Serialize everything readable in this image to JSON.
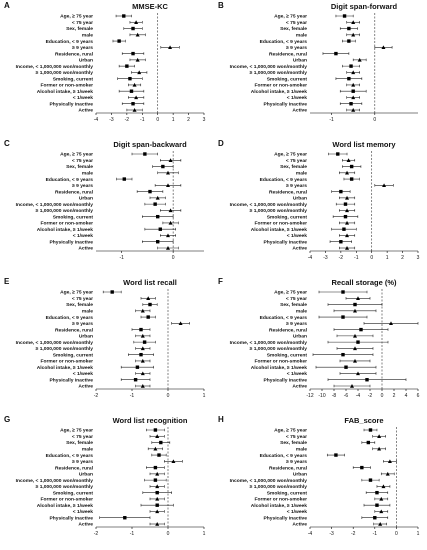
{
  "chart_data": [
    {
      "type": "forest",
      "panel_letter": "A",
      "title": "MMSE-KC",
      "xlim": [
        -4,
        3
      ],
      "xticks": [
        -4,
        -3,
        -2,
        -1,
        0,
        1,
        2,
        3
      ],
      "rows": [
        {
          "label": "Age, ≥ 75 year",
          "est": -2.2,
          "lo": -2.7,
          "hi": -1.7
        },
        {
          "label": "< 75 year",
          "est": -1.4,
          "lo": -1.8,
          "hi": -1.0
        },
        {
          "label": "Sex, female",
          "est": -1.6,
          "lo": -2.2,
          "hi": -1.0
        },
        {
          "label": "male",
          "est": -1.3,
          "lo": -1.8,
          "hi": -0.8
        },
        {
          "label": "Education, < 9 years",
          "est": -2.5,
          "lo": -2.9,
          "hi": -2.1
        },
        {
          "label": "≥ 9 years",
          "est": 0.8,
          "lo": 0.2,
          "hi": 1.4
        },
        {
          "label": "Residence, rural",
          "est": -1.6,
          "lo": -2.3,
          "hi": -0.9
        },
        {
          "label": "Urban",
          "est": -1.3,
          "lo": -1.8,
          "hi": -0.8
        },
        {
          "label": "Income, < 1,000,000 won/monthly",
          "est": -2.0,
          "lo": -2.5,
          "hi": -1.5
        },
        {
          "label": "≥ 1,000,000 won/monthly",
          "est": -1.2,
          "lo": -1.7,
          "hi": -0.7
        },
        {
          "label": "Smoking, current",
          "est": -1.8,
          "lo": -2.6,
          "hi": -1.0
        },
        {
          "label": "Former or non-smoker",
          "est": -1.5,
          "lo": -1.9,
          "hi": -1.1
        },
        {
          "label": "Alcohol intake, ≥ 1/week",
          "est": -1.7,
          "lo": -2.5,
          "hi": -0.9
        },
        {
          "label": "< 1/week",
          "est": -1.4,
          "lo": -1.9,
          "hi": -0.9
        },
        {
          "label": "Physically inactive",
          "est": -1.6,
          "lo": -2.3,
          "hi": -0.9
        },
        {
          "label": "Active",
          "est": -1.5,
          "lo": -2.0,
          "hi": -1.0
        }
      ]
    },
    {
      "type": "forest",
      "panel_letter": "B",
      "title": "Digit span-forward",
      "xlim": [
        -1.5,
        1
      ],
      "xticks": [
        -1,
        0
      ],
      "rows": [
        {
          "label": "Age, ≥ 75 year",
          "est": -0.7,
          "lo": -0.9,
          "hi": -0.5
        },
        {
          "label": "< 75 year",
          "est": -0.5,
          "lo": -0.65,
          "hi": -0.35
        },
        {
          "label": "Sex, female",
          "est": -0.6,
          "lo": -0.8,
          "hi": -0.4
        },
        {
          "label": "male",
          "est": -0.5,
          "lo": -0.65,
          "hi": -0.35
        },
        {
          "label": "Education, < 9 years",
          "est": -0.6,
          "lo": -0.75,
          "hi": -0.45
        },
        {
          "label": "≥ 9 years",
          "est": 0.2,
          "lo": 0.0,
          "hi": 0.4
        },
        {
          "label": "Residence, rural",
          "est": -0.9,
          "lo": -1.2,
          "hi": -0.6
        },
        {
          "label": "Urban",
          "est": -0.35,
          "lo": -0.5,
          "hi": -0.2
        },
        {
          "label": "Income, < 1,000,000 won/monthly",
          "est": -0.55,
          "lo": -0.75,
          "hi": -0.35
        },
        {
          "label": "≥ 1,000,000 won/monthly",
          "est": -0.5,
          "lo": -0.65,
          "hi": -0.35
        },
        {
          "label": "Smoking, current",
          "est": -0.6,
          "lo": -0.9,
          "hi": -0.3
        },
        {
          "label": "Former or non-smoker",
          "est": -0.5,
          "lo": -0.65,
          "hi": -0.35
        },
        {
          "label": "Alcohol intake, ≥ 1/week",
          "est": -0.5,
          "lo": -0.8,
          "hi": -0.2
        },
        {
          "label": "< 1/week",
          "est": -0.5,
          "lo": -0.65,
          "hi": -0.35
        },
        {
          "label": "Physically inactive",
          "est": -0.55,
          "lo": -0.8,
          "hi": -0.3
        },
        {
          "label": "Active",
          "est": -0.5,
          "lo": -0.65,
          "hi": -0.35
        }
      ]
    },
    {
      "type": "forest",
      "panel_letter": "C",
      "title": "Digit span-backward",
      "xlim": [
        -1.5,
        0.6
      ],
      "xticks": [
        -1,
        0
      ],
      "rows": [
        {
          "label": "Age, ≥ 75 year",
          "est": -0.55,
          "lo": -0.8,
          "hi": -0.3
        },
        {
          "label": "< 75 year",
          "est": -0.05,
          "lo": -0.25,
          "hi": 0.15
        },
        {
          "label": "Sex, female",
          "est": -0.2,
          "lo": -0.4,
          "hi": 0.0
        },
        {
          "label": "male",
          "est": -0.1,
          "lo": -0.3,
          "hi": 0.1
        },
        {
          "label": "Education, < 9 years",
          "est": -0.95,
          "lo": -1.1,
          "hi": -0.8
        },
        {
          "label": "≥ 9 years",
          "est": -0.1,
          "lo": -0.35,
          "hi": 0.15
        },
        {
          "label": "Residence, rural",
          "est": -0.45,
          "lo": -0.7,
          "hi": -0.2
        },
        {
          "label": "Urban",
          "est": -0.3,
          "lo": -0.45,
          "hi": -0.15
        },
        {
          "label": "Income, < 1,000,000 won/monthly",
          "est": -0.35,
          "lo": -0.55,
          "hi": -0.15
        },
        {
          "label": "≥ 1,000,000 won/monthly",
          "est": -0.05,
          "lo": -0.25,
          "hi": 0.15
        },
        {
          "label": "Smoking, current",
          "est": -0.3,
          "lo": -0.6,
          "hi": 0.0
        },
        {
          "label": "Former or non-smoker",
          "est": -0.05,
          "lo": -0.2,
          "hi": 0.1
        },
        {
          "label": "Alcohol intake, ≥ 1/week",
          "est": -0.25,
          "lo": -0.55,
          "hi": 0.05
        },
        {
          "label": "< 1/week",
          "est": -0.1,
          "lo": -0.25,
          "hi": 0.05
        },
        {
          "label": "Physically inactive",
          "est": -0.3,
          "lo": -0.6,
          "hi": 0.0
        },
        {
          "label": "Active",
          "est": -0.1,
          "lo": -0.3,
          "hi": 0.1
        }
      ]
    },
    {
      "type": "forest",
      "panel_letter": "D",
      "title": "Word list memory",
      "xlim": [
        -4,
        3
      ],
      "xticks": [
        -4,
        -3,
        -2,
        -1,
        0,
        1,
        2,
        3
      ],
      "rows": [
        {
          "label": "Age, ≥ 75 year",
          "est": -2.2,
          "lo": -2.8,
          "hi": -1.6
        },
        {
          "label": "< 75 year",
          "est": -1.5,
          "lo": -1.9,
          "hi": -1.1
        },
        {
          "label": "Sex, female",
          "est": -1.3,
          "lo": -1.9,
          "hi": -0.7
        },
        {
          "label": "male",
          "est": -1.6,
          "lo": -2.1,
          "hi": -1.1
        },
        {
          "label": "Education, < 9 years",
          "est": -1.3,
          "lo": -1.8,
          "hi": -0.8
        },
        {
          "label": "≥ 9 years",
          "est": 0.8,
          "lo": 0.2,
          "hi": 1.4
        },
        {
          "label": "Residence, rural",
          "est": -2.0,
          "lo": -2.6,
          "hi": -1.4
        },
        {
          "label": "Urban",
          "est": -1.6,
          "lo": -2.1,
          "hi": -1.1
        },
        {
          "label": "Income, < 1,000,000 won/monthly",
          "est": -1.7,
          "lo": -2.3,
          "hi": -1.1
        },
        {
          "label": "≥ 1,000,000 won/monthly",
          "est": -1.6,
          "lo": -2.1,
          "hi": -1.1
        },
        {
          "label": "Smoking, current",
          "est": -1.7,
          "lo": -2.5,
          "hi": -0.9
        },
        {
          "label": "Former or non-smoker",
          "est": -1.6,
          "lo": -2.1,
          "hi": -1.1
        },
        {
          "label": "Alcohol intake, ≥ 1/week",
          "est": -1.8,
          "lo": -2.6,
          "hi": -1.0
        },
        {
          "label": "< 1/week",
          "est": -1.6,
          "lo": -2.1,
          "hi": -1.1
        },
        {
          "label": "Physically inactive",
          "est": -2.0,
          "lo": -2.7,
          "hi": -1.3
        },
        {
          "label": "Active",
          "est": -1.6,
          "lo": -2.1,
          "hi": -1.1
        }
      ]
    },
    {
      "type": "forest",
      "panel_letter": "E",
      "title": "Word list recall",
      "xlim": [
        -2,
        1
      ],
      "xticks": [
        -2,
        -1,
        0,
        1
      ],
      "rows": [
        {
          "label": "Age, ≥ 75 year",
          "est": -1.55,
          "lo": -1.8,
          "hi": -1.3
        },
        {
          "label": "< 75 year",
          "est": -0.55,
          "lo": -0.75,
          "hi": -0.35
        },
        {
          "label": "Sex, female",
          "est": -0.5,
          "lo": -0.7,
          "hi": -0.3
        },
        {
          "label": "male",
          "est": -0.7,
          "lo": -0.9,
          "hi": -0.5
        },
        {
          "label": "Education, < 9 years",
          "est": -0.55,
          "lo": -0.75,
          "hi": -0.35
        },
        {
          "label": "≥ 9 years",
          "est": 0.35,
          "lo": 0.1,
          "hi": 0.6
        },
        {
          "label": "Residence, rural",
          "est": -0.75,
          "lo": -1.0,
          "hi": -0.5
        },
        {
          "label": "Urban",
          "est": -0.7,
          "lo": -0.9,
          "hi": -0.5
        },
        {
          "label": "Income, < 1,000,000 won/monthly",
          "est": -0.65,
          "lo": -0.95,
          "hi": -0.35
        },
        {
          "label": "≥ 1,000,000 won/monthly",
          "est": -0.7,
          "lo": -0.9,
          "hi": -0.5
        },
        {
          "label": "Smoking, current",
          "est": -0.75,
          "lo": -1.1,
          "hi": -0.4
        },
        {
          "label": "Former or non-smoker",
          "est": -0.7,
          "lo": -0.9,
          "hi": -0.5
        },
        {
          "label": "Alcohol intake, ≥ 1/week",
          "est": -0.85,
          "lo": -1.3,
          "hi": -0.4
        },
        {
          "label": "< 1/week",
          "est": -0.7,
          "lo": -0.9,
          "hi": -0.5
        },
        {
          "label": "Physically inactive",
          "est": -0.9,
          "lo": -1.3,
          "hi": -0.5
        },
        {
          "label": "Active",
          "est": -0.7,
          "lo": -0.9,
          "hi": -0.5
        }
      ]
    },
    {
      "type": "forest",
      "panel_letter": "F",
      "title": "Recall storage (%)",
      "xlim": [
        -12,
        6
      ],
      "xticks": [
        -12,
        -10,
        -8,
        -6,
        -4,
        -2,
        0,
        2,
        4,
        6
      ],
      "rows": [
        {
          "label": "Age, ≥ 75 year",
          "est": -6.5,
          "lo": -10.5,
          "hi": -2.5
        },
        {
          "label": "< 75 year",
          "est": -4.0,
          "lo": -6.0,
          "hi": -2.0
        },
        {
          "label": "Sex, female",
          "est": -4.5,
          "lo": -9.0,
          "hi": 0.0
        },
        {
          "label": "male",
          "est": -4.5,
          "lo": -8.0,
          "hi": -1.0
        },
        {
          "label": "Education, < 9 years",
          "est": -6.5,
          "lo": -10.5,
          "hi": -2.5
        },
        {
          "label": "≥ 9 years",
          "est": 1.5,
          "lo": -3.0,
          "hi": 6.0
        },
        {
          "label": "Residence, rural",
          "est": -3.5,
          "lo": -8.0,
          "hi": 1.0
        },
        {
          "label": "Urban",
          "est": -4.5,
          "lo": -7.5,
          "hi": -1.5
        },
        {
          "label": "Income, < 1,000,000 won/monthly",
          "est": -4.0,
          "lo": -9.0,
          "hi": 1.0
        },
        {
          "label": "≥ 1,000,000 won/monthly",
          "est": -4.5,
          "lo": -7.5,
          "hi": -1.5
        },
        {
          "label": "Smoking, current",
          "est": -6.5,
          "lo": -11.5,
          "hi": -1.5
        },
        {
          "label": "Former or non-smoker",
          "est": -4.5,
          "lo": -7.0,
          "hi": -2.0
        },
        {
          "label": "Alcohol intake, ≥ 1/week",
          "est": -6.0,
          "lo": -11.0,
          "hi": -1.0
        },
        {
          "label": "< 1/week",
          "est": -4.0,
          "lo": -7.0,
          "hi": -1.0
        },
        {
          "label": "Physically inactive",
          "est": -2.5,
          "lo": -9.0,
          "hi": 4.0
        },
        {
          "label": "Active",
          "est": -5.0,
          "lo": -8.0,
          "hi": -2.0
        }
      ]
    },
    {
      "type": "forest",
      "panel_letter": "G",
      "title": "Word list recognition",
      "xlim": [
        -2,
        1
      ],
      "xticks": [
        -2,
        -1,
        0,
        1
      ],
      "rows": [
        {
          "label": "Age, ≥ 75 year",
          "est": -0.35,
          "lo": -0.6,
          "hi": -0.1
        },
        {
          "label": "< 75 year",
          "est": -0.3,
          "lo": -0.5,
          "hi": -0.1
        },
        {
          "label": "Sex, female",
          "est": -0.2,
          "lo": -0.45,
          "hi": 0.05
        },
        {
          "label": "male",
          "est": -0.35,
          "lo": -0.55,
          "hi": -0.15
        },
        {
          "label": "Education, < 9 years",
          "est": -0.25,
          "lo": -0.45,
          "hi": -0.05
        },
        {
          "label": "≥ 9 years",
          "est": 0.15,
          "lo": -0.1,
          "hi": 0.4
        },
        {
          "label": "Residence, rural",
          "est": -0.35,
          "lo": -0.6,
          "hi": -0.1
        },
        {
          "label": "Urban",
          "est": -0.3,
          "lo": -0.5,
          "hi": -0.1
        },
        {
          "label": "Income, < 1,000,000 won/monthly",
          "est": -0.35,
          "lo": -0.65,
          "hi": -0.05
        },
        {
          "label": "≥ 1,000,000 won/monthly",
          "est": -0.3,
          "lo": -0.5,
          "hi": -0.1
        },
        {
          "label": "Smoking, current",
          "est": -0.3,
          "lo": -0.7,
          "hi": 0.1
        },
        {
          "label": "Former or non-smoker",
          "est": -0.3,
          "lo": -0.5,
          "hi": -0.1
        },
        {
          "label": "Alcohol intake, ≥ 1/week",
          "est": -0.3,
          "lo": -0.75,
          "hi": 0.15
        },
        {
          "label": "< 1/week",
          "est": -0.3,
          "lo": -0.5,
          "hi": -0.1
        },
        {
          "label": "Physically inactive",
          "est": -1.2,
          "lo": -1.9,
          "hi": -0.5
        },
        {
          "label": "Active",
          "est": -0.3,
          "lo": -0.5,
          "hi": -0.1
        }
      ]
    },
    {
      "type": "forest",
      "panel_letter": "H",
      "title": "FAB_score",
      "xlim": [
        -4,
        1
      ],
      "xticks": [
        -4,
        -3,
        -2,
        -1,
        0,
        1
      ],
      "rows": [
        {
          "label": "Age, ≥ 75 year",
          "est": -1.2,
          "lo": -1.5,
          "hi": -0.9
        },
        {
          "label": "< 75 year",
          "est": -0.8,
          "lo": -1.1,
          "hi": -0.5
        },
        {
          "label": "Sex, female",
          "est": -1.3,
          "lo": -1.6,
          "hi": -1.0
        },
        {
          "label": "male",
          "est": -0.8,
          "lo": -1.1,
          "hi": -0.5
        },
        {
          "label": "Education, < 9 years",
          "est": -2.8,
          "lo": -3.2,
          "hi": -2.4
        },
        {
          "label": "≥ 9 years",
          "est": -0.3,
          "lo": -0.6,
          "hi": 0.0
        },
        {
          "label": "Residence, rural",
          "est": -1.6,
          "lo": -2.0,
          "hi": -1.2
        },
        {
          "label": "Urban",
          "est": -0.4,
          "lo": -0.7,
          "hi": -0.1
        },
        {
          "label": "Income, < 1,000,000 won/monthly",
          "est": -1.2,
          "lo": -1.6,
          "hi": -0.8
        },
        {
          "label": "≥ 1,000,000 won/monthly",
          "est": -0.6,
          "lo": -0.9,
          "hi": -0.3
        },
        {
          "label": "Smoking, current",
          "est": -0.9,
          "lo": -1.4,
          "hi": -0.4
        },
        {
          "label": "Former or non-smoker",
          "est": -0.7,
          "lo": -1.0,
          "hi": -0.4
        },
        {
          "label": "Alcohol intake, ≥ 1/week",
          "est": -0.9,
          "lo": -1.5,
          "hi": -0.3
        },
        {
          "label": "< 1/week",
          "est": -0.7,
          "lo": -1.0,
          "hi": -0.4
        },
        {
          "label": "Physically inactive",
          "est": -1.0,
          "lo": -1.6,
          "hi": -0.4
        },
        {
          "label": "Active",
          "est": -0.75,
          "lo": -1.05,
          "hi": -0.45
        }
      ]
    }
  ]
}
